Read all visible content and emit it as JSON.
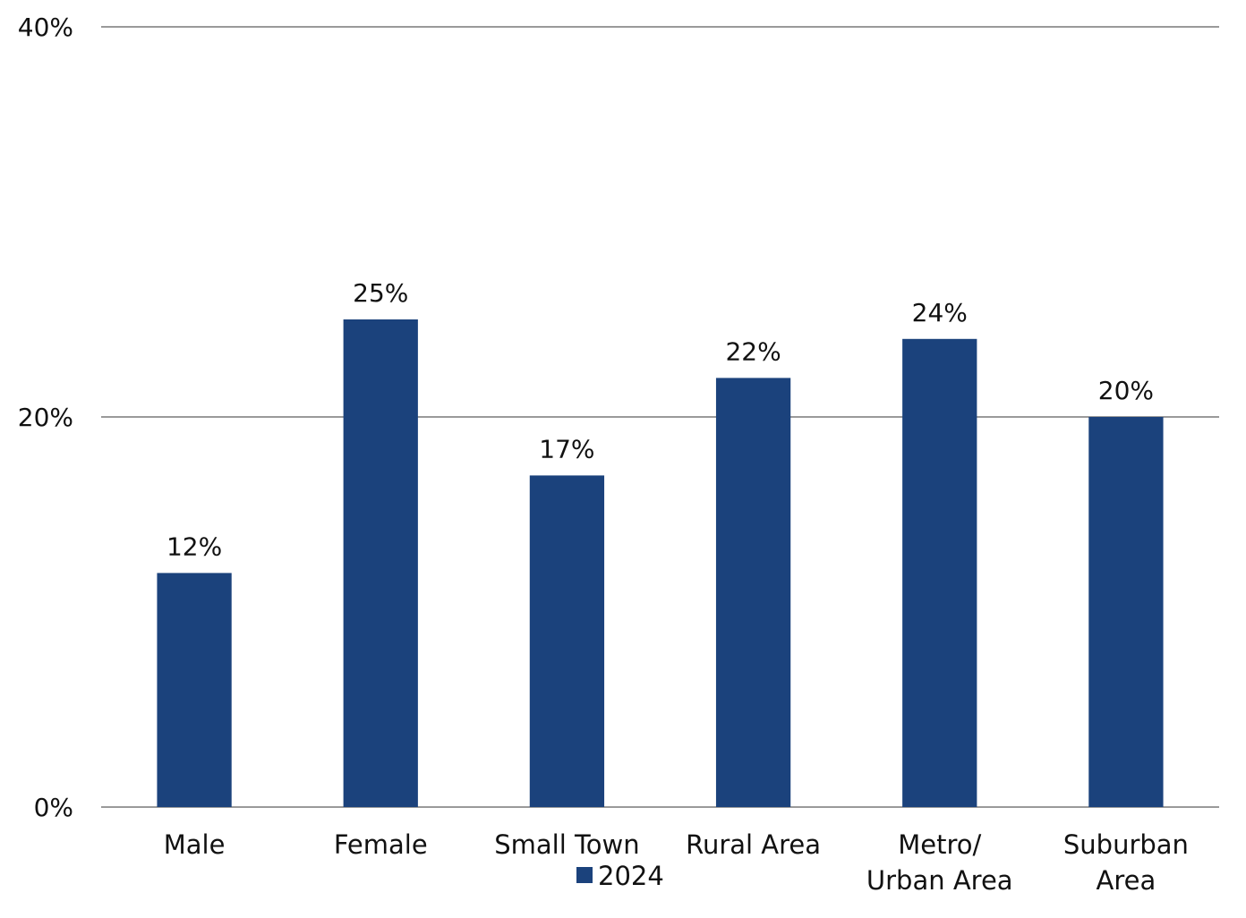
{
  "chart_data": {
    "type": "bar",
    "categories": [
      "Male",
      "Female",
      "Small Town",
      "Rural Area",
      "Metro/ Urban Area",
      "Suburban Area"
    ],
    "category_lines": [
      [
        "Male"
      ],
      [
        "Female"
      ],
      [
        "Small Town"
      ],
      [
        "Rural Area"
      ],
      [
        "Metro/",
        "Urban Area"
      ],
      [
        "Suburban",
        "Area"
      ]
    ],
    "series": [
      {
        "name": "2024",
        "values": [
          12,
          25,
          17,
          22,
          24,
          20
        ],
        "color": "#1b427c"
      }
    ],
    "data_labels": [
      "12%",
      "25%",
      "17%",
      "22%",
      "24%",
      "20%"
    ],
    "yticks": [
      0,
      20,
      40
    ],
    "ytick_labels": [
      "0%",
      "20%",
      "40%"
    ],
    "ylim": [
      0,
      40
    ],
    "grid": true,
    "legend_position": "bottom",
    "title": "",
    "xlabel": "",
    "ylabel": ""
  }
}
